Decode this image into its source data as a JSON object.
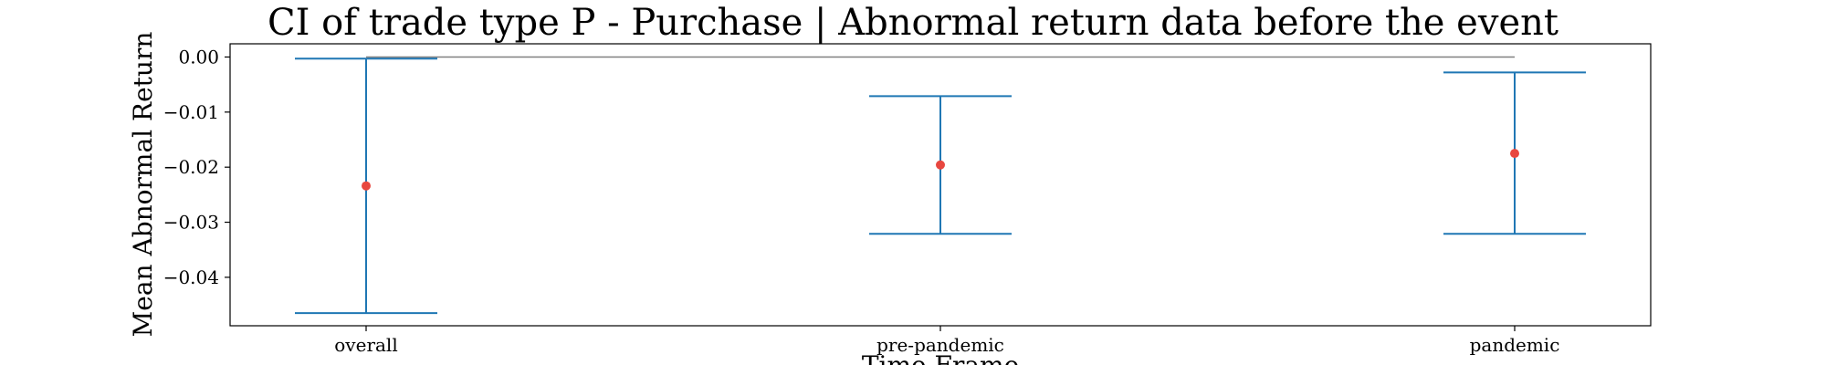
{
  "chart_data": {
    "type": "errorbar",
    "title": "CI of trade type  P - Purchase | Abnormal return data before the event",
    "xlabel": "Time Frame",
    "ylabel": "Mean Abnormal Return",
    "categories": [
      "overall",
      "pre-pandemic",
      "pandemic"
    ],
    "means": [
      -0.0234,
      -0.0196,
      -0.0175
    ],
    "ci_lower": [
      -0.0465,
      -0.0321,
      -0.0321
    ],
    "ci_upper": [
      -0.0003,
      -0.0071,
      -0.0028
    ],
    "reference_line": 0.0,
    "ylim": [
      -0.0488,
      0.0024
    ],
    "yticks": [
      0.0,
      -0.01,
      -0.02,
      -0.03,
      -0.04
    ],
    "ytick_labels": [
      "0.00",
      "−0.01",
      "−0.02",
      "−0.03",
      "−0.04"
    ],
    "grid": false,
    "colors": {
      "ci": "#1f77b4",
      "mean": "#e8473f",
      "reference": "#808080",
      "axes": "#000000"
    }
  }
}
